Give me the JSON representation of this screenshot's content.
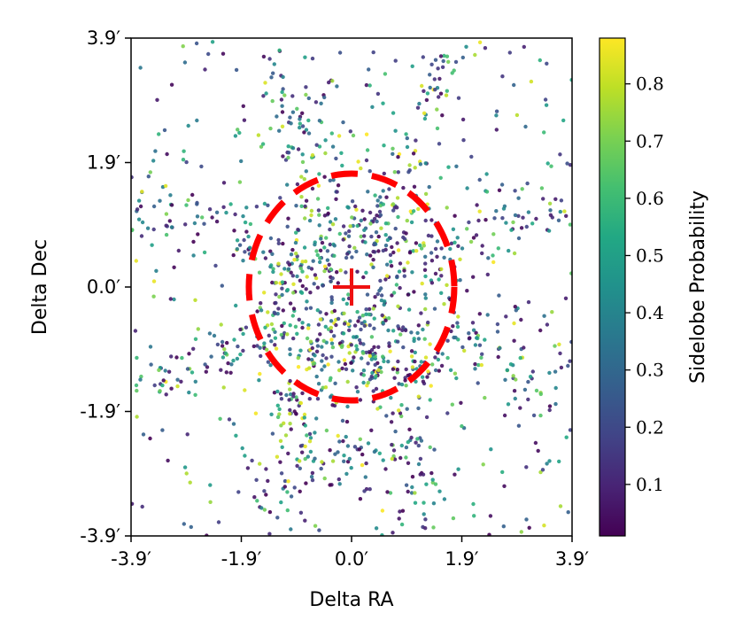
{
  "chart_data": {
    "type": "scatter",
    "xlabel": "Delta RA",
    "ylabel": "Delta Dec",
    "xlim": [
      -3.9,
      3.9
    ],
    "ylim": [
      -3.9,
      3.9
    ],
    "x_ticks": [
      "-3.9′",
      "-1.9′",
      "0.0′",
      "1.9′",
      "3.9′"
    ],
    "y_ticks": [
      "3.9′",
      "1.9′",
      "0.0′",
      "-1.9′",
      "-3.9′"
    ],
    "colorbar": {
      "label": "Sidelobe Probability",
      "range": [
        0.01,
        0.88
      ],
      "ticks": [
        "0.8",
        "0.7",
        "0.6",
        "0.5",
        "0.4",
        "0.3",
        "0.2",
        "0.1"
      ],
      "colormap": "viridis"
    },
    "overlays": {
      "circle": {
        "center": [
          0.0,
          0.0
        ],
        "radius": 1.8,
        "color": "#ff0000",
        "style": "dashed"
      },
      "marker": {
        "position": [
          0.0,
          0.0
        ],
        "symbol": "+",
        "color": "#ff0000"
      }
    },
    "point_distribution": {
      "description": "approx. 1400 scatter points concentrated around center with radial streaks (sidelobes); values sampled to approximate the figure",
      "approx_count": 1400
    },
    "grid": false
  }
}
